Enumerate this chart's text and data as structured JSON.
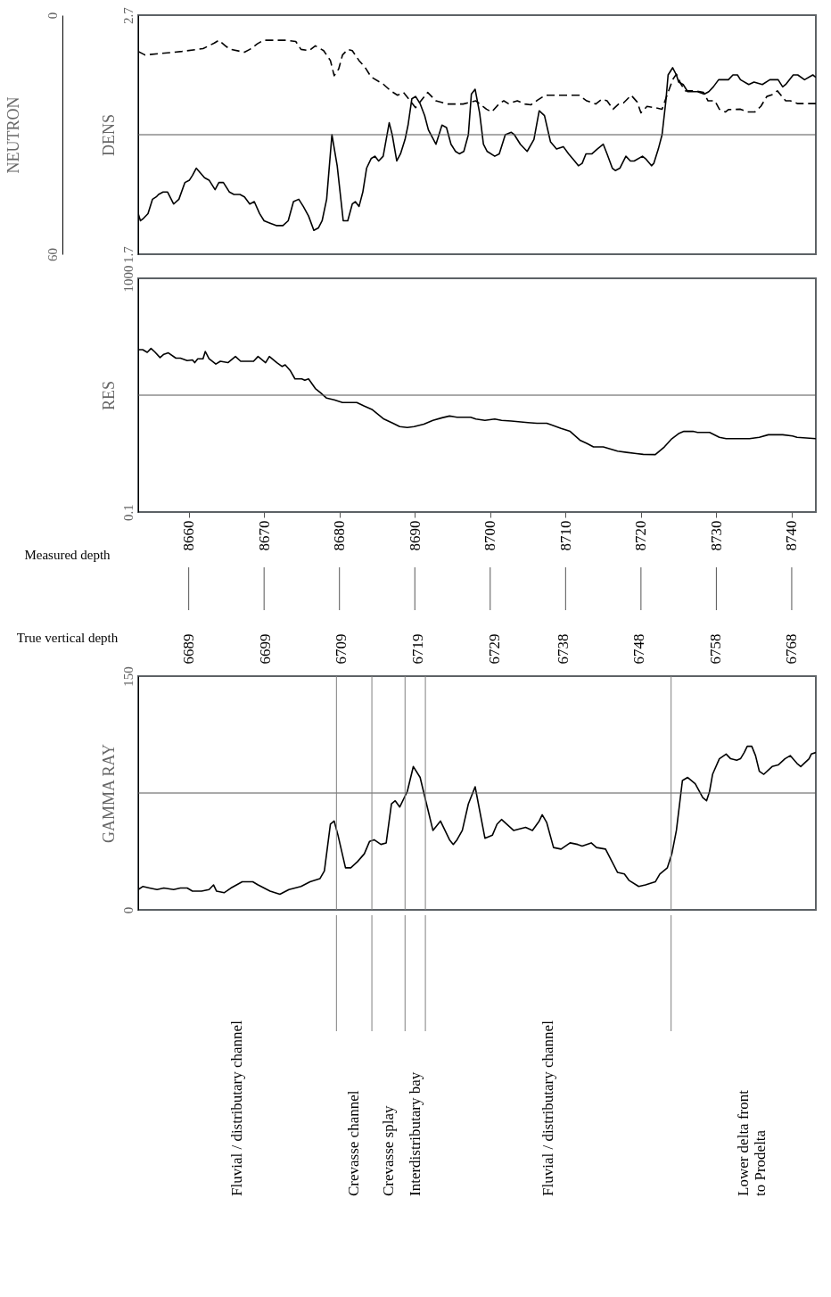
{
  "chart_data": [
    {
      "type": "line",
      "ylabel": "DENS",
      "y2label": "NEUTRON",
      "ylim": [
        1.7,
        2.7
      ],
      "yticks": [
        1.7,
        2.7
      ],
      "y2lim": [
        60,
        0
      ],
      "y2ticks": [
        60,
        0
      ],
      "xlim": [
        8653.3,
        8743.2
      ],
      "tick_labels": "y",
      "ref_lines": [
        {
          "axis": "y",
          "value": 2.2,
          "color": "#555555"
        }
      ],
      "series": [
        {
          "color": "#000000",
          "line_style": "solid",
          "x": [
            8653.3,
            8653.6,
            8654.0,
            8654.6,
            8655.2,
            8655.7,
            8656.0,
            8656.6,
            8657.2,
            8658.0,
            8658.7,
            8659.5,
            8660.1,
            8660.5,
            8661.0,
            8662.1,
            8662.7,
            8663.5,
            8664.0,
            8664.6,
            8665.4,
            8666.0,
            8666.8,
            8667.4,
            8668.1,
            8668.7,
            8669.4,
            8670.0,
            8670.8,
            8671.6,
            8672.5,
            8673.2,
            8673.9,
            8674.6,
            8675.2,
            8675.9,
            8676.6,
            8677.2,
            8677.7,
            8678.3,
            8679.0,
            8679.7,
            8680.5,
            8681.1,
            8681.7,
            8682.1,
            8682.6,
            8683.1,
            8683.6,
            8684.2,
            8684.7,
            8685.2,
            8685.8,
            8686.6,
            8687.0,
            8687.6,
            8688.1,
            8688.7,
            8689.1,
            8689.6,
            8690.1,
            8690.7,
            8691.3,
            8691.8,
            8692.8,
            8693.1,
            8693.6,
            8694.2,
            8694.8,
            8695.4,
            8695.9,
            8696.5,
            8697.1,
            8697.5,
            8698.0,
            8698.6,
            8699.1,
            8699.6,
            8700.6,
            8701.2,
            8702.0,
            8702.8,
            8703.2,
            8704.0,
            8704.9,
            8705.8,
            8706.5,
            8707.2,
            8708.0,
            8708.8,
            8709.7,
            8710.4,
            8711.2,
            8711.7,
            8712.2,
            8712.7,
            8713.5,
            8714.2,
            8715.0,
            8715.5,
            8716.2,
            8716.6,
            8717.2,
            8718.0,
            8718.6,
            8719.1,
            8720.2,
            8720.6,
            8721.4,
            8721.7,
            8722.3,
            8722.8,
            8723.3,
            8723.6,
            8724.2,
            8724.7,
            8725.0,
            8725.6,
            8726.2,
            8727.5,
            8728.4,
            8729.0,
            8729.6,
            8730.3,
            8731.0,
            8731.6,
            8732.2,
            8732.8,
            8733.2,
            8734.3,
            8735.0,
            8736.1,
            8737.1,
            8738.2,
            8738.8,
            8739.2,
            8740.2,
            8740.8,
            8741.7,
            8742.8,
            8743.2
          ],
          "values": [
            1.87,
            1.84,
            1.85,
            1.87,
            1.93,
            1.94,
            1.95,
            1.96,
            1.96,
            1.91,
            1.93,
            2.0,
            2.01,
            2.03,
            2.06,
            2.02,
            2.01,
            1.97,
            2.0,
            2.0,
            1.96,
            1.95,
            1.95,
            1.94,
            1.91,
            1.92,
            1.87,
            1.84,
            1.83,
            1.82,
            1.82,
            1.84,
            1.92,
            1.93,
            1.9,
            1.86,
            1.8,
            1.81,
            1.84,
            1.93,
            2.2,
            2.07,
            1.84,
            1.84,
            1.91,
            1.92,
            1.9,
            1.96,
            2.06,
            2.1,
            2.11,
            2.09,
            2.11,
            2.25,
            2.2,
            2.09,
            2.12,
            2.18,
            2.24,
            2.35,
            2.36,
            2.33,
            2.28,
            2.22,
            2.16,
            2.19,
            2.24,
            2.23,
            2.16,
            2.13,
            2.12,
            2.13,
            2.2,
            2.37,
            2.39,
            2.29,
            2.16,
            2.13,
            2.11,
            2.12,
            2.2,
            2.21,
            2.2,
            2.16,
            2.13,
            2.18,
            2.3,
            2.28,
            2.17,
            2.14,
            2.15,
            2.12,
            2.09,
            2.07,
            2.08,
            2.12,
            2.12,
            2.14,
            2.16,
            2.12,
            2.06,
            2.05,
            2.06,
            2.11,
            2.09,
            2.09,
            2.11,
            2.1,
            2.07,
            2.08,
            2.14,
            2.2,
            2.34,
            2.45,
            2.48,
            2.45,
            2.42,
            2.41,
            2.38,
            2.38,
            2.37,
            2.38,
            2.4,
            2.43,
            2.43,
            2.43,
            2.45,
            2.45,
            2.43,
            2.41,
            2.42,
            2.41,
            2.43,
            2.43,
            2.4,
            2.41,
            2.45,
            2.45,
            2.43,
            2.45,
            2.44
          ]
        },
        {
          "color": "#000000",
          "axis": "y2",
          "line_style": "dashed",
          "x": [
            8653.3,
            8654.2,
            8659.1,
            8661.9,
            8663.4,
            8664.0,
            8665.0,
            8665.6,
            8667.4,
            8668.1,
            8669.1,
            8669.9,
            8672.8,
            8674.2,
            8674.9,
            8676.0,
            8676.8,
            8677.9,
            8678.8,
            8679.3,
            8679.9,
            8680.4,
            8681.1,
            8681.7,
            8682.6,
            8683.4,
            8684.2,
            8685.8,
            8686.8,
            8687.7,
            8688.5,
            8690.1,
            8691.7,
            8692.8,
            8694.4,
            8696.4,
            8698.1,
            8699.5,
            8700.2,
            8701.2,
            8701.8,
            8702.4,
            8703.6,
            8704.6,
            8705.4,
            8706.3,
            8707.3,
            8708.7,
            8711.8,
            8712.8,
            8714.0,
            8714.8,
            8715.5,
            8716.3,
            8717.1,
            8717.7,
            8718.7,
            8719.5,
            8720.0,
            8720.8,
            8721.8,
            8722.8,
            8723.4,
            8724.2,
            8724.7,
            8725.3,
            8725.9,
            8727.3,
            8728.3,
            8728.9,
            8729.8,
            8730.4,
            8731.2,
            8731.6,
            8733.2,
            8734.1,
            8735.1,
            8735.9,
            8736.7,
            8737.5,
            8738.1,
            8738.8,
            8739.2,
            8739.8,
            8740.8,
            8742.2,
            8743.2
          ],
          "values": [
            9.1,
            10.0,
            9.1,
            8.4,
            7.0,
            6.3,
            7.9,
            8.6,
            9.3,
            8.6,
            7.2,
            6.3,
            6.3,
            6.6,
            8.6,
            8.9,
            7.7,
            8.9,
            11.4,
            15.2,
            13.5,
            10.0,
            8.6,
            8.9,
            11.4,
            13.1,
            15.5,
            17.3,
            19.0,
            20.1,
            19.4,
            23.2,
            19.4,
            21.5,
            22.3,
            22.3,
            21.5,
            23.6,
            24.3,
            22.2,
            21.5,
            22.2,
            21.5,
            22.3,
            22.5,
            21.3,
            20.1,
            20.1,
            20.1,
            21.5,
            22.3,
            21.1,
            21.5,
            23.6,
            22.2,
            22.0,
            20.1,
            21.8,
            24.5,
            22.9,
            23.2,
            23.6,
            20.4,
            16.2,
            14.8,
            17.3,
            19.0,
            19.0,
            19.4,
            21.5,
            21.5,
            23.6,
            24.3,
            23.7,
            23.6,
            24.3,
            24.3,
            22.9,
            20.4,
            19.9,
            19.0,
            20.6,
            21.5,
            21.5,
            22.2,
            22.2,
            22.2
          ]
        }
      ]
    },
    {
      "type": "line",
      "ylabel": "RES",
      "log": true,
      "ylim": [
        0.1,
        1000
      ],
      "yticks": [
        0.1,
        1000
      ],
      "ref_lines": [
        {
          "axis": "y",
          "value": 10,
          "color": "#555555"
        }
      ],
      "xlim": [
        8653.3,
        8743.2
      ],
      "xticks": [
        8660,
        8670,
        8680,
        8690,
        8700,
        8710,
        8720,
        8730,
        8740
      ],
      "xlabel": "Measured depth",
      "x2lim": [
        6689,
        6768
      ],
      "x2ticks": [
        6689,
        6699,
        6709,
        6719,
        6729,
        6738,
        6748,
        6758,
        6768
      ],
      "x2label": "True vertical depth",
      "series": [
        {
          "color": "#000000",
          "x": [
            8653.3,
            8653.9,
            8654.5,
            8655.0,
            8655.5,
            8656.2,
            8656.7,
            8657.3,
            8658.3,
            8658.9,
            8659.8,
            8660.5,
            8660.8,
            8661.2,
            8661.9,
            8662.2,
            8662.7,
            8663.6,
            8664.2,
            8665.2,
            8666.2,
            8666.9,
            8668.6,
            8669.2,
            8670.2,
            8670.7,
            8671.7,
            8672.4,
            8672.8,
            8673.5,
            8674.1,
            8675.0,
            8675.4,
            8675.9,
            8676.8,
            8677.5,
            8678.3,
            8679.3,
            8680.4,
            8682.3,
            8683.3,
            8684.3,
            8685.9,
            8687.1,
            8688.0,
            8689.0,
            8689.9,
            8691.2,
            8692.4,
            8693.6,
            8694.6,
            8695.6,
            8697.4,
            8698.1,
            8699.3,
            8700.6,
            8701.5,
            8702.8,
            8705.0,
            8706.2,
            8707.5,
            8708.1,
            8709.4,
            8710.6,
            8711.9,
            8712.8,
            8713.7,
            8715.0,
            8716.9,
            8718.1,
            8719.4,
            8720.3,
            8721.9,
            8723.1,
            8724.1,
            8725.0,
            8725.7,
            8726.9,
            8727.5,
            8729.1,
            8730.4,
            8731.3,
            8734.4,
            8735.7,
            8736.9,
            8738.8,
            8740.1,
            8740.7,
            8743.2
          ],
          "values": [
            60,
            60,
            54,
            63,
            55,
            44,
            50,
            53,
            43,
            43,
            39,
            40,
            36,
            42,
            42,
            56,
            42,
            34,
            38,
            36,
            46,
            38,
            38,
            46,
            36,
            46,
            36,
            31,
            33,
            26,
            19,
            19,
            18,
            19,
            13,
            11,
            8.9,
            8.3,
            7.5,
            7.5,
            6.5,
            5.7,
            3.9,
            3.3,
            2.9,
            2.8,
            2.9,
            3.2,
            3.7,
            4.1,
            4.4,
            4.2,
            4.2,
            3.9,
            3.7,
            3.9,
            3.7,
            3.6,
            3.4,
            3.3,
            3.3,
            3.1,
            2.7,
            2.4,
            1.7,
            1.5,
            1.3,
            1.3,
            1.1,
            1.05,
            1.0,
            0.97,
            0.96,
            1.3,
            1.8,
            2.2,
            2.4,
            2.4,
            2.3,
            2.3,
            1.9,
            1.8,
            1.8,
            1.9,
            2.1,
            2.1,
            2.0,
            1.9,
            1.8
          ]
        }
      ]
    },
    {
      "type": "line",
      "ylabel": "GAMMA RAY",
      "ylim": [
        0,
        150
      ],
      "yticks": [
        0,
        150
      ],
      "tick_labels": "y",
      "xlim": [
        8653.3,
        8743.2
      ],
      "series": [
        {
          "color": "#000000",
          "x": [
            8653.3,
            8653.9,
            8654.8,
            8655.8,
            8656.7,
            8658.0,
            8658.9,
            8659.8,
            8660.5,
            8661.7,
            8662.7,
            8663.3,
            8663.7,
            8664.7,
            8665.6,
            8667.1,
            8668.5,
            8669.2,
            8670.8,
            8672.1,
            8673.3,
            8674.9,
            8676.1,
            8677.4,
            8678.0,
            8678.8,
            8679.3,
            8679.8,
            8680.8,
            8681.5,
            8682.4,
            8683.3,
            8684.0,
            8684.6,
            8685.5,
            8686.2,
            8686.9,
            8687.4,
            8688.0,
            8689.0,
            8689.8,
            8690.7,
            8691.5,
            8692.4,
            8693.4,
            8694.6,
            8695.1,
            8695.6,
            8696.3,
            8697.1,
            8698.0,
            8699.3,
            8700.3,
            8700.9,
            8701.5,
            8703.1,
            8704.7,
            8705.6,
            8706.5,
            8706.9,
            8707.5,
            8708.4,
            8709.4,
            8710.6,
            8711.6,
            8712.2,
            8713.4,
            8714.1,
            8715.3,
            8716.9,
            8717.8,
            8718.4,
            8719.7,
            8720.6,
            8721.9,
            8722.5,
            8723.5,
            8724.1,
            8724.7,
            8725.5,
            8726.2,
            8727.2,
            8728.2,
            8728.7,
            8729.1,
            8729.5,
            8730.4,
            8731.3,
            8731.9,
            8732.7,
            8733.2,
            8733.7,
            8734.1,
            8734.7,
            8735.2,
            8735.7,
            8736.3,
            8737.4,
            8738.2,
            8739.1,
            8739.8,
            8740.7,
            8741.2,
            8742.3,
            8742.6,
            8743.2
          ],
          "values": [
            13,
            15,
            14,
            13,
            14,
            13,
            14,
            14,
            12,
            12,
            13,
            16,
            12,
            11,
            14,
            18,
            18,
            16,
            12,
            10,
            13,
            15,
            18,
            20,
            25,
            55,
            57,
            48,
            27,
            27,
            31,
            36,
            44,
            45,
            42,
            43,
            68,
            70,
            66,
            76,
            92,
            85,
            69,
            51,
            57,
            45,
            42,
            45,
            51,
            68,
            79,
            46,
            48,
            55,
            58,
            51,
            53,
            51,
            57,
            61,
            56,
            40,
            39,
            43,
            42,
            41,
            43,
            40,
            39,
            24,
            23,
            19,
            15,
            16,
            18,
            23,
            27,
            36,
            51,
            83,
            85,
            81,
            72,
            70,
            76,
            87,
            97,
            100,
            97,
            96,
            97,
            101,
            105,
            105,
            99,
            89,
            87,
            92,
            93,
            97,
            99,
            94,
            92,
            97,
            100,
            101
          ]
        }
      ],
      "ref_lines": [
        {
          "axis": "y",
          "value": 75,
          "color": "#555555"
        },
        {
          "axis": "x",
          "value": 8679.6,
          "color": "#808080"
        },
        {
          "axis": "x",
          "value": 8684.3,
          "color": "#808080"
        },
        {
          "axis": "x",
          "value": 8688.7,
          "color": "#808080"
        },
        {
          "axis": "x",
          "value": 8691.4,
          "color": "#808080"
        },
        {
          "axis": "x",
          "value": 8724.0,
          "color": "#808080"
        }
      ],
      "annotations": [
        "Fluvial / distributary channel",
        "Crevasse channel",
        "Crevasse splay",
        "Interdistributary bay",
        "Fluvial / distributary channel",
        "Lower delta front\nto Prodelta"
      ]
    }
  ]
}
